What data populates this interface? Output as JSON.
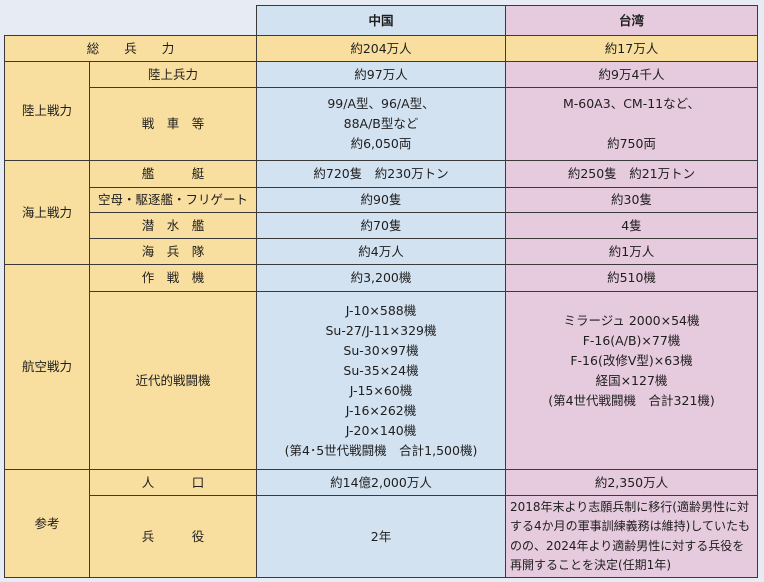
{
  "header": {
    "china": "中国",
    "taiwan": "台湾"
  },
  "colors": {
    "label_bg": "#f9df9f",
    "china_bg": "#d3e2f1",
    "taiwan_bg": "#e6cade",
    "page_bg": "#e6ebf4"
  },
  "rows": {
    "total": {
      "label": "総　　兵　　力",
      "china": "約204万人",
      "taiwan": "約17万人"
    },
    "ground": {
      "group": "陸上戦力",
      "troops": {
        "label": "陸上兵力",
        "china": "約97万人",
        "taiwan": "約9万4千人"
      },
      "tanks": {
        "label": "戦　車　等",
        "china": "99/A型、96/A型、\n88A/B型など\n約6,050両",
        "taiwan": "M-60A3、CM-11など、\n\n約750両"
      }
    },
    "sea": {
      "group": "海上戦力",
      "ships": {
        "label": "艦　　　艇",
        "china": "約720隻　約230万トン",
        "taiwan": "約250隻　約21万トン"
      },
      "carriers": {
        "label": "空母・駆逐艦・フリゲート",
        "china": "約90隻",
        "taiwan": "約30隻"
      },
      "submarines": {
        "label": "潜　水　艦",
        "china": "約70隻",
        "taiwan": "4隻"
      },
      "marines": {
        "label": "海　兵　隊",
        "china": "約4万人",
        "taiwan": "約1万人"
      }
    },
    "air": {
      "group": "航空戦力",
      "aircraft": {
        "label": "作　戦　機",
        "china": "約3,200機",
        "taiwan": "約510機"
      },
      "fighters": {
        "label": "近代的戦闘機",
        "china": "J-10×588機\nSu-27/J-11×329機\nSu-30×97機\nSu-35×24機\nJ-15×60機\nJ-16×262機\nJ-20×140機\n(第4･5世代戦闘機　合計1,500機)",
        "taiwan": "ミラージュ 2000×54機\nF-16(A/B)×77機\nF-16(改修V型)×63機\n経国×127機\n(第4世代戦闘機　合計321機)\n\n\n"
      }
    },
    "ref": {
      "group": "参考",
      "population": {
        "label": "人　　　口",
        "china": "約14億2,000万人",
        "taiwan": "約2,350万人"
      },
      "service": {
        "label": "兵　　　役",
        "china": "2年",
        "taiwan": "2018年末より志願兵制に移行(適齢男性に対する4か月の軍事訓練義務は維持)していたものの、2024年より適齢男性に対する兵役を再開することを決定(任期1年)"
      }
    }
  }
}
